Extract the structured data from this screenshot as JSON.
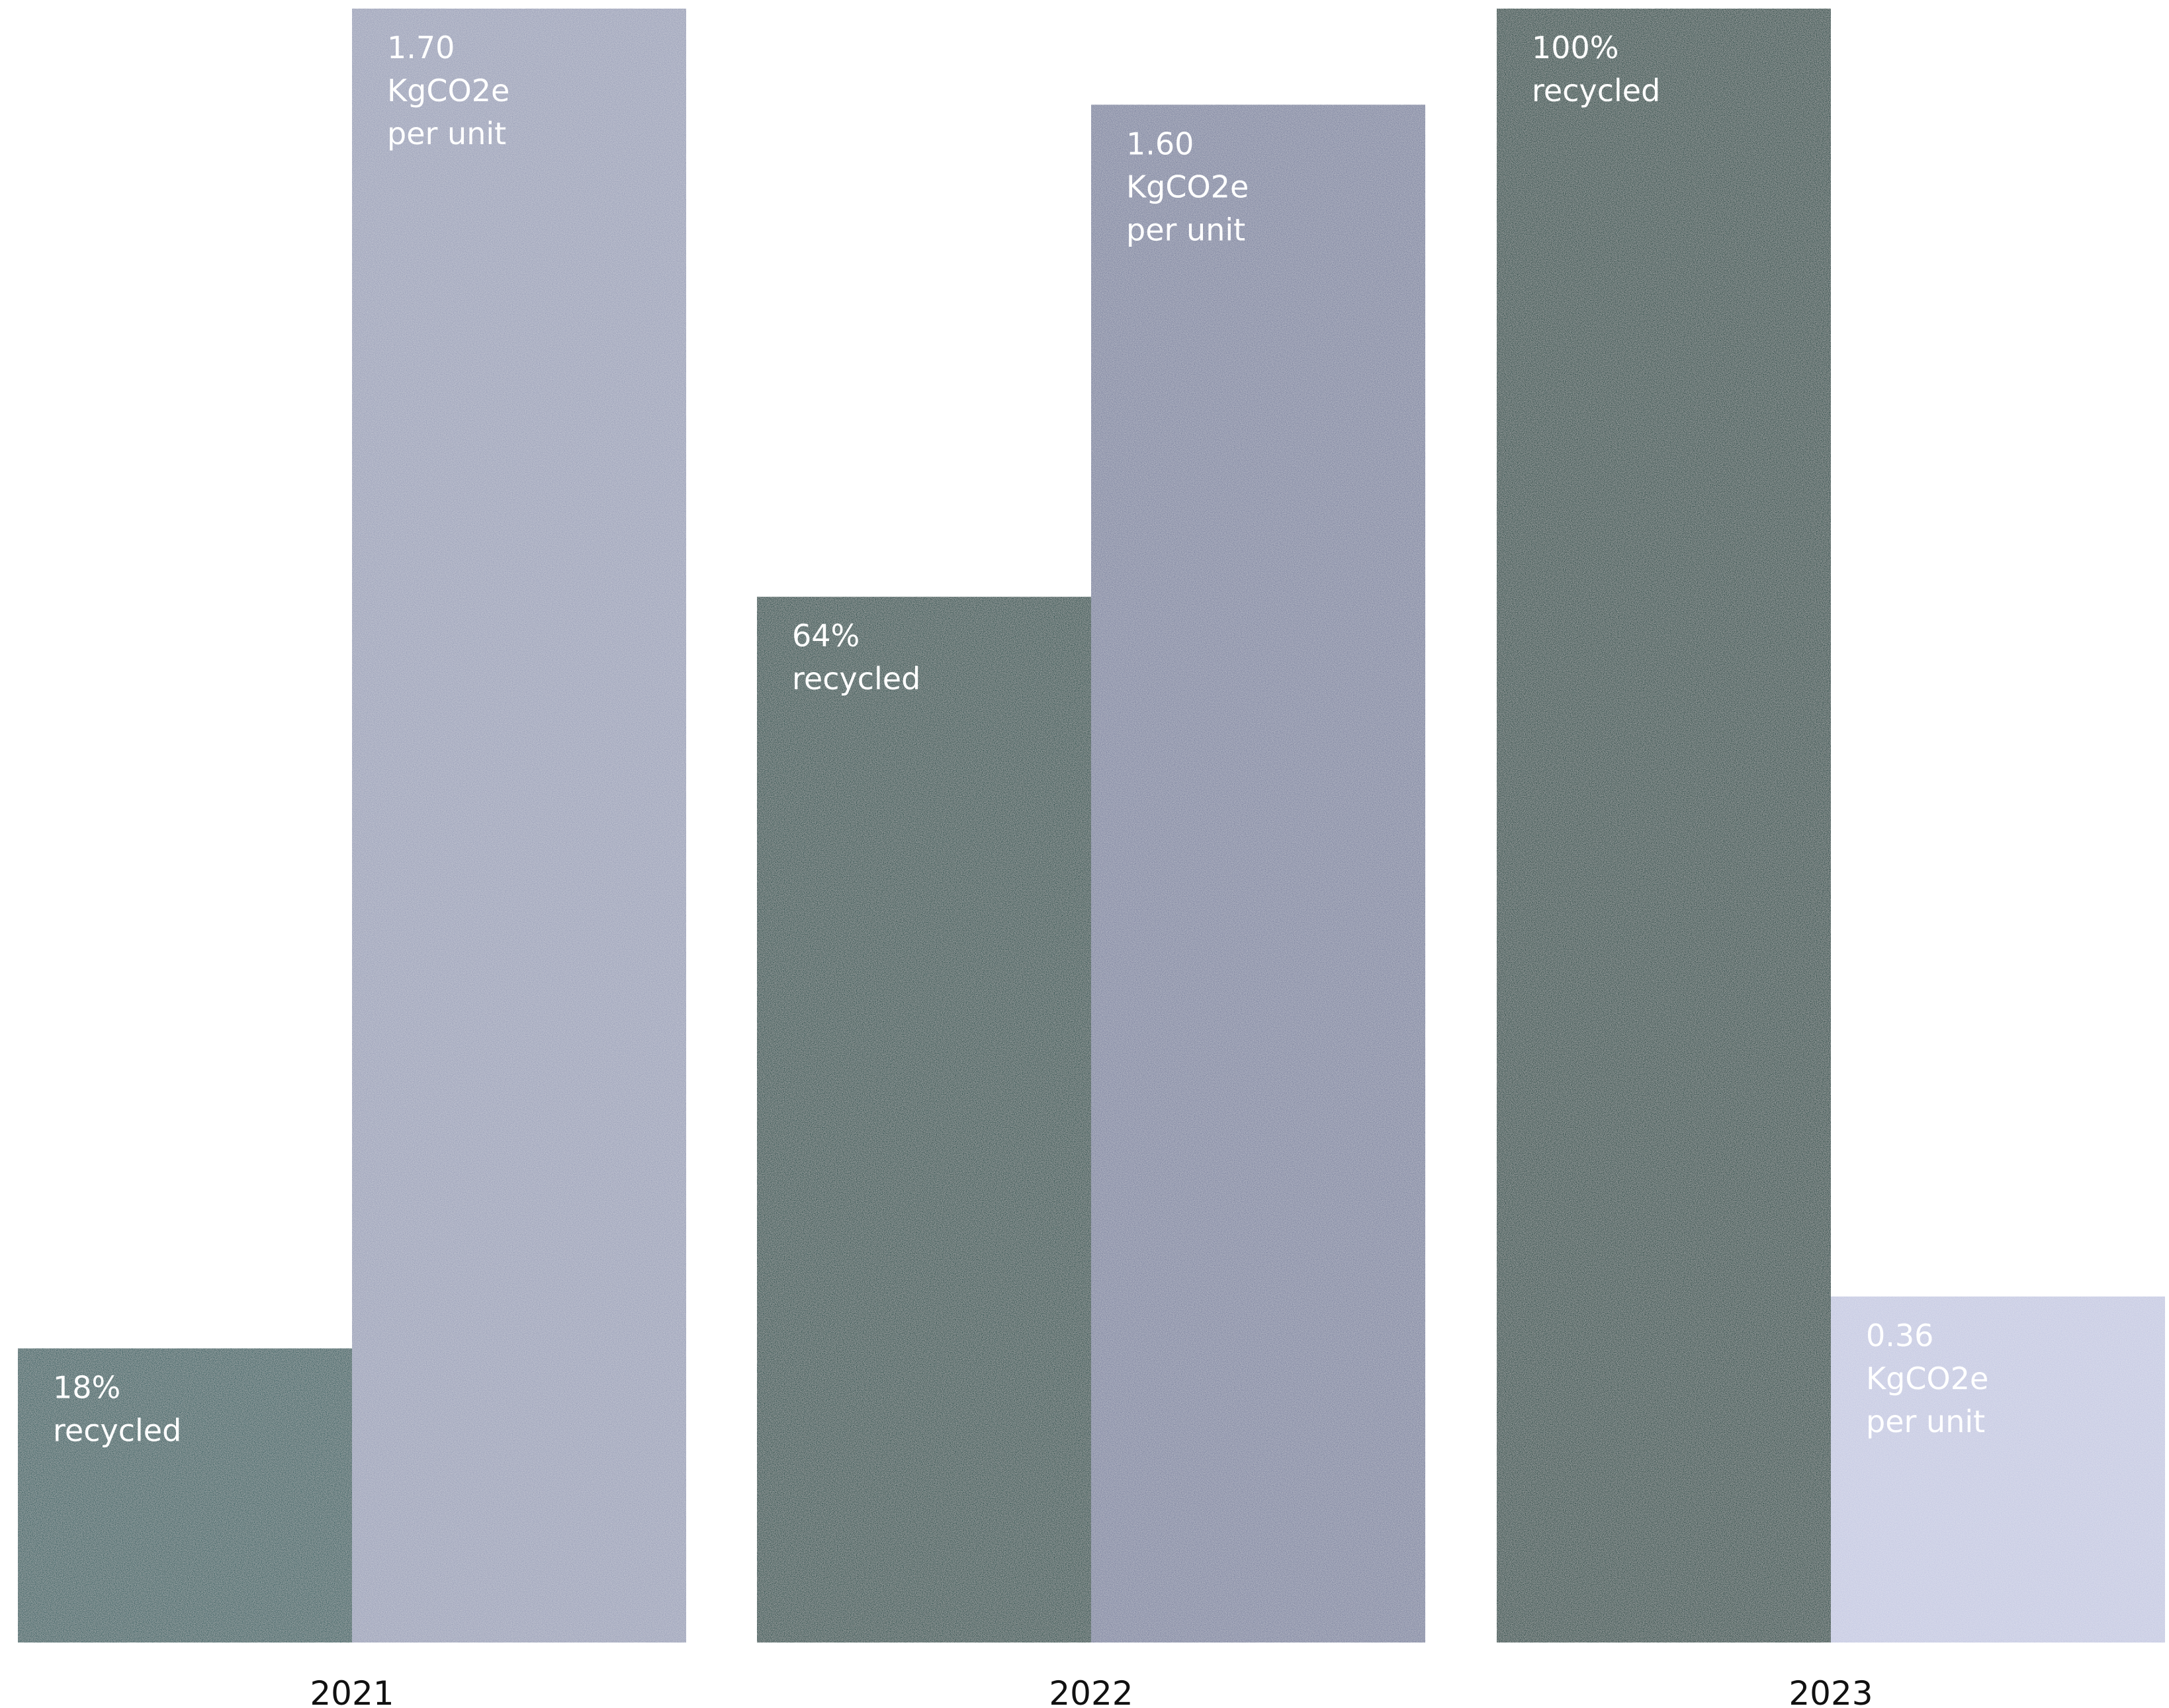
{
  "chart_data": {
    "type": "bar",
    "title": "",
    "xlabel": "",
    "ylabel": "",
    "categories": [
      "2021",
      "2022",
      "2023"
    ],
    "series": [
      {
        "key": "recycled",
        "values": [
          18,
          64,
          100
        ],
        "labels": [
          [
            "18%",
            "recycled"
          ],
          [
            "64%",
            "recycled"
          ],
          [
            "100%",
            "recycled"
          ]
        ],
        "colors": [
          "#2f5c5e",
          "#1f4a47",
          "#1a4440"
        ]
      },
      {
        "key": "emissions",
        "values": [
          1.7,
          1.6,
          0.36
        ],
        "labels": [
          [
            "1.70",
            "KgCO2e",
            "per unit"
          ],
          [
            "1.60",
            "KgCO2e",
            "per unit"
          ],
          [
            "0.36",
            "KgCO2e",
            "per unit"
          ]
        ],
        "colors": [
          "#9aa0b8",
          "#7d84a0",
          "#c5c9e2"
        ]
      }
    ],
    "scale": {
      "recycled_max": 100,
      "emissions_max": 1.7
    },
    "grid": false,
    "legend": "none"
  }
}
